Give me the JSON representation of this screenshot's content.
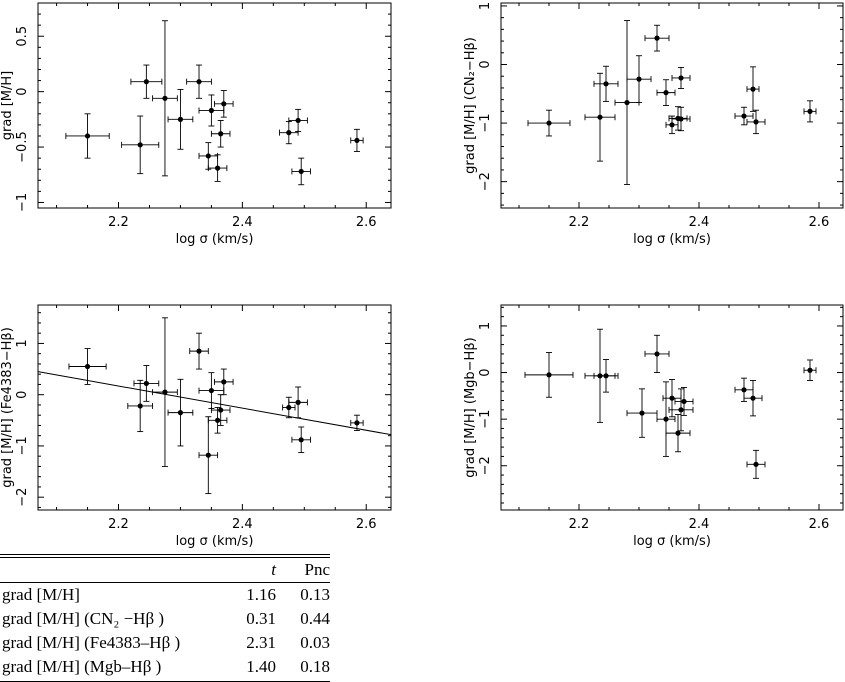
{
  "chart_data": [
    {
      "type": "scatter",
      "xlabel": "log σ (km/s)",
      "ylabel": "grad [M/H]",
      "xlim": [
        2.07,
        2.64
      ],
      "ylim": [
        -1.05,
        0.8
      ],
      "xticks": [
        2.2,
        2.4,
        2.6
      ],
      "xtick_labels": [
        "2.2",
        "2.4",
        "2.6"
      ],
      "yticks": [
        -1,
        -0.5,
        0,
        0.5
      ],
      "ytick_labels": [
        "−1",
        "−0.5",
        "0",
        "0.5"
      ],
      "points": [
        {
          "x": 2.15,
          "y": -0.4,
          "xerr": 0.035,
          "yerr": 0.2
        },
        {
          "x": 2.235,
          "y": -0.48,
          "xerr": 0.03,
          "yerr": 0.26
        },
        {
          "x": 2.245,
          "y": 0.09,
          "xerr": 0.025,
          "yerr": 0.15
        },
        {
          "x": 2.275,
          "y": -0.06,
          "xerr": 0.02,
          "yerr": 0.7
        },
        {
          "x": 2.3,
          "y": -0.25,
          "xerr": 0.02,
          "yerr": 0.27
        },
        {
          "x": 2.33,
          "y": 0.09,
          "xerr": 0.02,
          "yerr": 0.15
        },
        {
          "x": 2.345,
          "y": -0.58,
          "xerr": 0.015,
          "yerr": 0.12
        },
        {
          "x": 2.35,
          "y": -0.17,
          "xerr": 0.02,
          "yerr": 0.14
        },
        {
          "x": 2.36,
          "y": -0.69,
          "xerr": 0.015,
          "yerr": 0.12
        },
        {
          "x": 2.365,
          "y": -0.38,
          "xerr": 0.015,
          "yerr": 0.12
        },
        {
          "x": 2.37,
          "y": -0.11,
          "xerr": 0.015,
          "yerr": 0.12
        },
        {
          "x": 2.475,
          "y": -0.37,
          "xerr": 0.015,
          "yerr": 0.1
        },
        {
          "x": 2.49,
          "y": -0.26,
          "xerr": 0.015,
          "yerr": 0.1
        },
        {
          "x": 2.495,
          "y": -0.72,
          "xerr": 0.015,
          "yerr": 0.12
        },
        {
          "x": 2.585,
          "y": -0.44,
          "xerr": 0.01,
          "yerr": 0.1
        }
      ]
    },
    {
      "type": "scatter",
      "xlabel": "log σ (km/s)",
      "ylabel": "grad [M/H] (CN₂−Hβ)",
      "xlim": [
        2.07,
        2.64
      ],
      "ylim": [
        -2.45,
        1.05
      ],
      "xticks": [
        2.2,
        2.4,
        2.6
      ],
      "xtick_labels": [
        "2.2",
        "2.4",
        "2.6"
      ],
      "yticks": [
        -2,
        -1,
        0,
        1
      ],
      "ytick_labels": [
        "−2",
        "−1",
        "0",
        "1"
      ],
      "points": [
        {
          "x": 2.15,
          "y": -1.0,
          "xerr": 0.035,
          "yerr": 0.22
        },
        {
          "x": 2.235,
          "y": -0.9,
          "xerr": 0.025,
          "yerr": 0.75
        },
        {
          "x": 2.245,
          "y": -0.33,
          "xerr": 0.02,
          "yerr": 0.3
        },
        {
          "x": 2.28,
          "y": -0.65,
          "xerr": 0.02,
          "yerr": 1.4
        },
        {
          "x": 2.3,
          "y": -0.25,
          "xerr": 0.02,
          "yerr": 0.4
        },
        {
          "x": 2.33,
          "y": 0.45,
          "xerr": 0.02,
          "yerr": 0.22
        },
        {
          "x": 2.345,
          "y": -0.48,
          "xerr": 0.015,
          "yerr": 0.22
        },
        {
          "x": 2.355,
          "y": -1.03,
          "xerr": 0.01,
          "yerr": 0.15
        },
        {
          "x": 2.365,
          "y": -0.92,
          "xerr": 0.015,
          "yerr": 0.2
        },
        {
          "x": 2.37,
          "y": -0.93,
          "xerr": 0.015,
          "yerr": 0.2
        },
        {
          "x": 2.37,
          "y": -0.23,
          "xerr": 0.015,
          "yerr": 0.18
        },
        {
          "x": 2.475,
          "y": -0.88,
          "xerr": 0.015,
          "yerr": 0.15
        },
        {
          "x": 2.49,
          "y": -0.42,
          "xerr": 0.01,
          "yerr": 0.38
        },
        {
          "x": 2.495,
          "y": -0.98,
          "xerr": 0.015,
          "yerr": 0.2
        },
        {
          "x": 2.585,
          "y": -0.8,
          "xerr": 0.01,
          "yerr": 0.18
        }
      ]
    },
    {
      "type": "scatter",
      "xlabel": "log σ (km/s)",
      "ylabel": "grad [M/H] (Fe4383−Hβ)",
      "xlim": [
        2.07,
        2.64
      ],
      "ylim": [
        -2.25,
        1.75
      ],
      "xticks": [
        2.2,
        2.4,
        2.6
      ],
      "xtick_labels": [
        "2.2",
        "2.4",
        "2.6"
      ],
      "yticks": [
        -2,
        -1,
        0,
        1
      ],
      "ytick_labels": [
        "−2",
        "−1",
        "0",
        "1"
      ],
      "fit_line": {
        "x": [
          2.07,
          2.64
        ],
        "y": [
          0.45,
          -0.78
        ]
      },
      "points": [
        {
          "x": 2.15,
          "y": 0.55,
          "xerr": 0.03,
          "yerr": 0.35
        },
        {
          "x": 2.235,
          "y": -0.22,
          "xerr": 0.02,
          "yerr": 0.5
        },
        {
          "x": 2.245,
          "y": 0.22,
          "xerr": 0.02,
          "yerr": 0.35
        },
        {
          "x": 2.275,
          "y": 0.05,
          "xerr": 0.02,
          "yerr": 1.45
        },
        {
          "x": 2.3,
          "y": -0.35,
          "xerr": 0.02,
          "yerr": 0.65
        },
        {
          "x": 2.33,
          "y": 0.85,
          "xerr": 0.015,
          "yerr": 0.35
        },
        {
          "x": 2.345,
          "y": -1.18,
          "xerr": 0.015,
          "yerr": 0.75
        },
        {
          "x": 2.35,
          "y": 0.08,
          "xerr": 0.02,
          "yerr": 0.35
        },
        {
          "x": 2.36,
          "y": -0.5,
          "xerr": 0.015,
          "yerr": 0.25
        },
        {
          "x": 2.365,
          "y": -0.3,
          "xerr": 0.015,
          "yerr": 0.3
        },
        {
          "x": 2.37,
          "y": 0.25,
          "xerr": 0.015,
          "yerr": 0.25
        },
        {
          "x": 2.475,
          "y": -0.25,
          "xerr": 0.01,
          "yerr": 0.2
        },
        {
          "x": 2.49,
          "y": -0.15,
          "xerr": 0.015,
          "yerr": 0.3
        },
        {
          "x": 2.495,
          "y": -0.88,
          "xerr": 0.015,
          "yerr": 0.25
        },
        {
          "x": 2.585,
          "y": -0.55,
          "xerr": 0.01,
          "yerr": 0.15
        }
      ]
    },
    {
      "type": "scatter",
      "xlabel": "log σ (km/s)",
      "ylabel": "grad [M/H] (Mgb−Hβ)",
      "xlim": [
        2.07,
        2.64
      ],
      "ylim": [
        -2.95,
        1.45
      ],
      "xticks": [
        2.2,
        2.4,
        2.6
      ],
      "xtick_labels": [
        "2.2",
        "2.4",
        "2.6"
      ],
      "yticks": [
        -2,
        -1,
        0,
        1
      ],
      "ytick_labels": [
        "−2",
        "−1",
        "0",
        "1"
      ],
      "points": [
        {
          "x": 2.15,
          "y": -0.05,
          "xerr": 0.04,
          "yerr": 0.48
        },
        {
          "x": 2.235,
          "y": -0.07,
          "xerr": 0.025,
          "yerr": 1.0
        },
        {
          "x": 2.245,
          "y": -0.07,
          "xerr": 0.02,
          "yerr": 0.35
        },
        {
          "x": 2.305,
          "y": -0.87,
          "xerr": 0.025,
          "yerr": 0.52
        },
        {
          "x": 2.33,
          "y": 0.4,
          "xerr": 0.02,
          "yerr": 0.4
        },
        {
          "x": 2.345,
          "y": -1.0,
          "xerr": 0.015,
          "yerr": 0.8
        },
        {
          "x": 2.355,
          "y": -0.55,
          "xerr": 0.015,
          "yerr": 0.4
        },
        {
          "x": 2.365,
          "y": -1.3,
          "xerr": 0.02,
          "yerr": 0.4
        },
        {
          "x": 2.37,
          "y": -0.8,
          "xerr": 0.02,
          "yerr": 0.45
        },
        {
          "x": 2.375,
          "y": -0.62,
          "xerr": 0.015,
          "yerr": 0.3
        },
        {
          "x": 2.475,
          "y": -0.37,
          "xerr": 0.015,
          "yerr": 0.25
        },
        {
          "x": 2.49,
          "y": -0.55,
          "xerr": 0.015,
          "yerr": 0.38
        },
        {
          "x": 2.495,
          "y": -1.97,
          "xerr": 0.015,
          "yerr": 0.3
        },
        {
          "x": 2.585,
          "y": 0.05,
          "xerr": 0.01,
          "yerr": 0.22
        }
      ]
    }
  ],
  "table": {
    "columns": [
      "",
      "t",
      "Pnc"
    ],
    "rows": [
      {
        "name": "grad [M/H]",
        "t": "1.16",
        "p": "0.13"
      },
      {
        "name": "grad [M/H] (CN₂ −Hβ )",
        "t": "0.31",
        "p": "0.44"
      },
      {
        "name": "grad [M/H] (Fe4383–Hβ )",
        "t": "2.31",
        "p": "0.03"
      },
      {
        "name": "grad [M/H] (Mgb–Hβ )",
        "t": "1.40",
        "p": "0.18"
      }
    ]
  }
}
